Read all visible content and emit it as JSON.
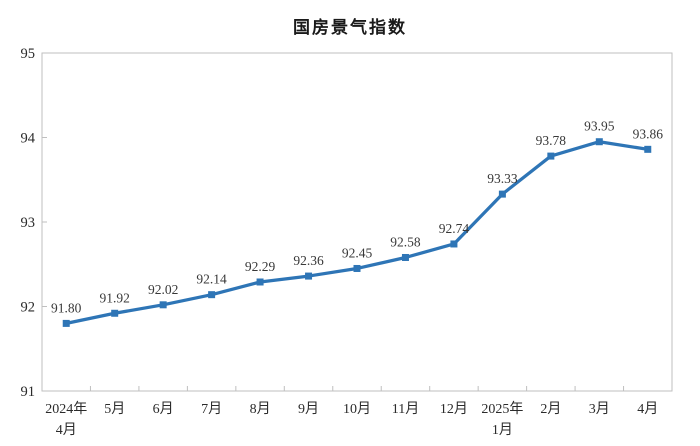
{
  "chart_data": {
    "type": "line",
    "title": "国房景气指数",
    "series_name": "国房景气指数",
    "categories": [
      "2024年\n4月",
      "5月",
      "6月",
      "7月",
      "8月",
      "9月",
      "10月",
      "11月",
      "12月",
      "2025年\n1月",
      "2月",
      "3月",
      "4月"
    ],
    "values": [
      91.8,
      91.92,
      92.02,
      92.14,
      92.29,
      92.36,
      92.45,
      92.58,
      92.74,
      93.33,
      93.78,
      93.95,
      93.86
    ],
    "data_labels": [
      "91.80",
      "91.92",
      "92.02",
      "92.14",
      "92.29",
      "92.36",
      "92.45",
      "92.58",
      "92.74",
      "93.33",
      "93.78",
      "93.95",
      "93.86"
    ],
    "xlabel": "",
    "ylabel": "",
    "ylim": [
      91,
      95
    ],
    "yticks": [
      "95",
      "94",
      "93",
      "92",
      "91"
    ],
    "ytick_values": [
      95,
      94,
      93,
      92,
      91
    ],
    "grid": false,
    "legend_position": "none",
    "line_color": "#2E75B6",
    "marker": "square",
    "axis_line_color": "#BFBFBF",
    "text_color": "#2b2b2b",
    "background_color": "#ffffff"
  }
}
